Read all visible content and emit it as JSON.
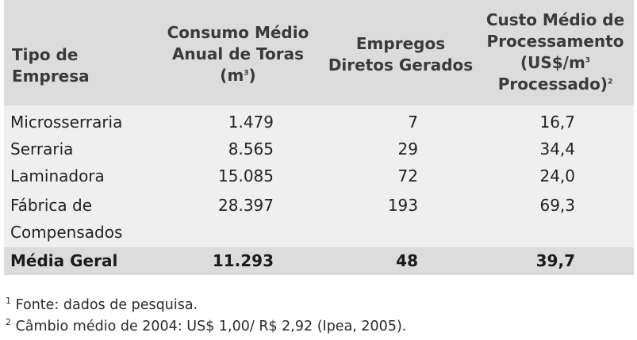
{
  "table": {
    "headers": {
      "tipo": "Tipo de Empresa",
      "consumo_l1": "Consumo Médio",
      "consumo_l2": "Anual de Toras",
      "consumo_l3": "(m",
      "consumo_sup": "3",
      "consumo_l3_end": ")",
      "empregos_l1": "Empregos",
      "empregos_l2": "Diretos Gerados",
      "custo_l1": "Custo Médio de",
      "custo_l2": "Processamento",
      "custo_l3": "(US$/m",
      "custo_l3_sup": "3",
      "custo_l4": "Processado)",
      "custo_l4_sup": "2"
    },
    "rows": [
      {
        "tipo": "Microsserraria",
        "consumo": "1.479",
        "empregos": "7",
        "custo": "16,7"
      },
      {
        "tipo": "Serraria",
        "consumo": "8.565",
        "empregos": "29",
        "custo": "34,4"
      },
      {
        "tipo": "Laminadora",
        "consumo": "15.085",
        "empregos": "72",
        "custo": "24,0"
      },
      {
        "tipo": "Fábrica de",
        "tipo_l2": "Compensados",
        "consumo": "28.397",
        "empregos": "193",
        "custo": "69,3"
      }
    ],
    "total": {
      "tipo": "Média Geral",
      "consumo": "11.293",
      "empregos": "48",
      "custo": "39,7"
    }
  },
  "footnotes": [
    {
      "num": "1",
      "text": " Fonte: dados de pesquisa."
    },
    {
      "num": "2",
      "text": " Câmbio médio de 2004: US$ 1,00/ R$ 2,92 (Ipea, 2005)."
    }
  ]
}
